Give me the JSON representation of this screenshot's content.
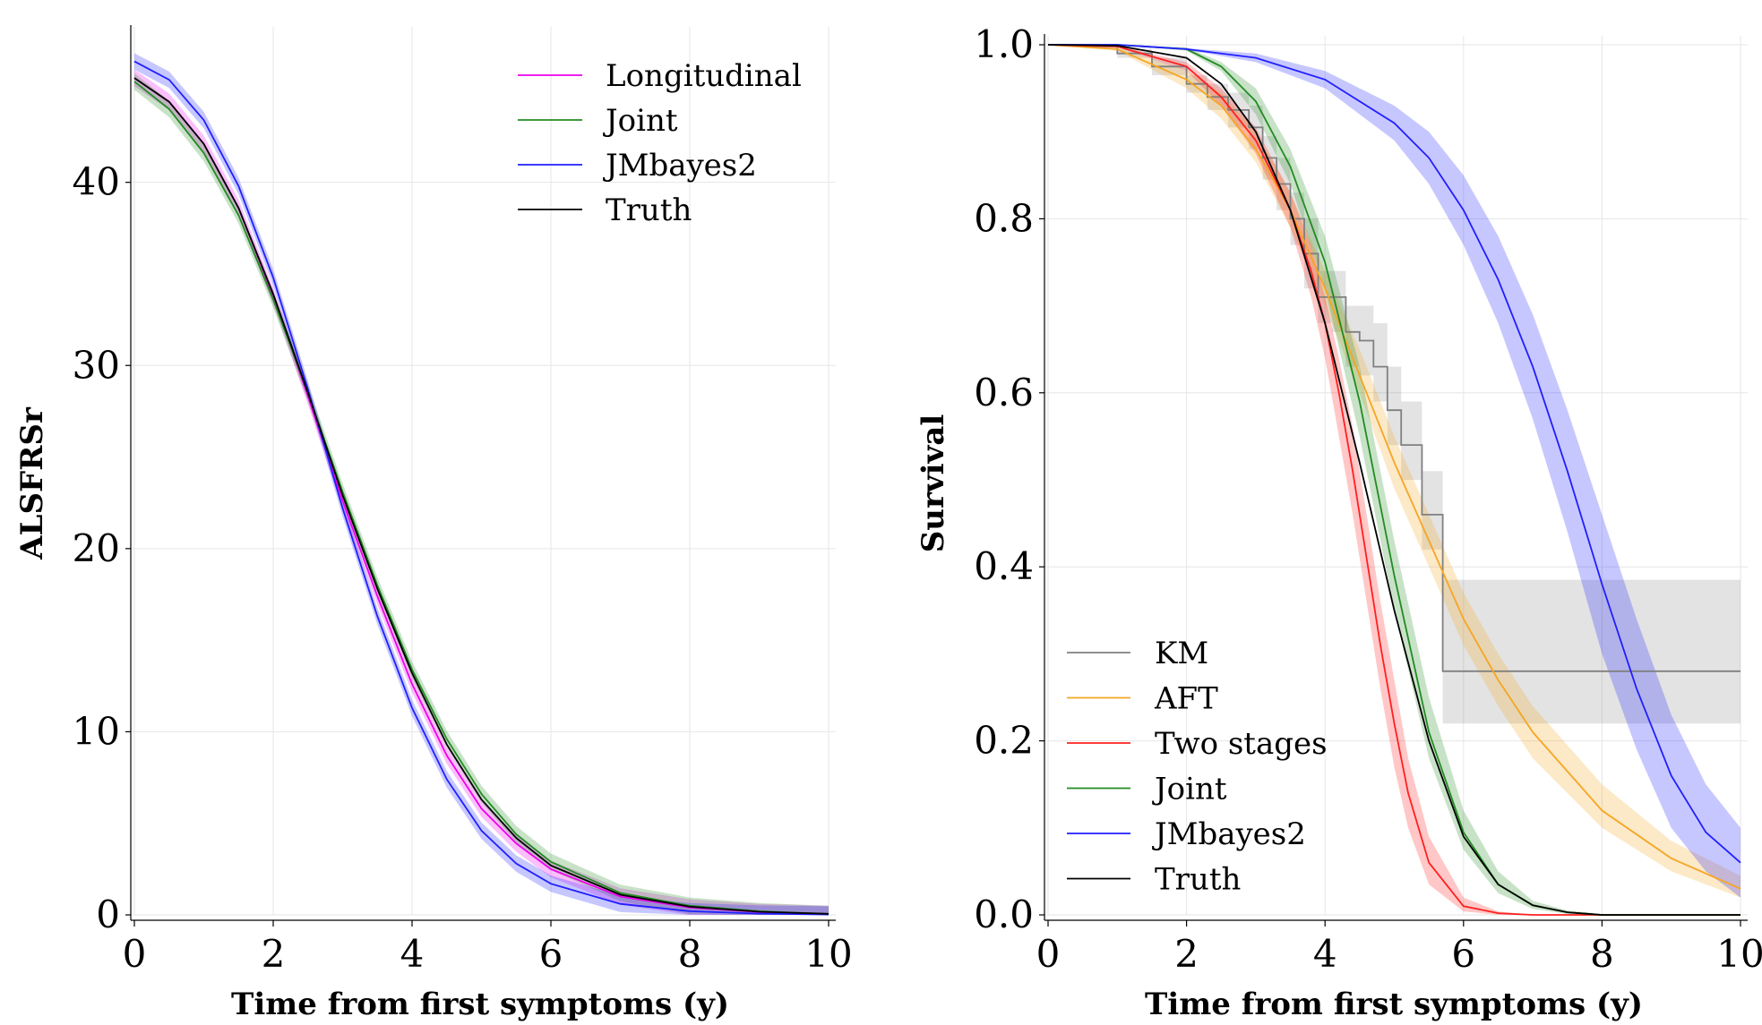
{
  "chart_data": [
    {
      "type": "line",
      "title": "",
      "xlabel": "Time from first symptoms (y)",
      "ylabel": "ALSFRSr",
      "xlim": [
        0,
        10
      ],
      "ylim": [
        0,
        48
      ],
      "xticks": [
        "0",
        "2",
        "4",
        "6",
        "8",
        "10"
      ],
      "yticks": [
        "0",
        "10",
        "20",
        "30",
        "40"
      ],
      "grid": true,
      "legend_position": "top-right",
      "series": [
        {
          "name": "Longitudinal",
          "color": "#ee00ee",
          "band": true,
          "x": [
            0,
            0.5,
            1,
            1.5,
            2,
            2.5,
            3,
            3.5,
            4,
            4.5,
            5,
            5.5,
            6,
            7,
            8,
            9,
            10
          ],
          "y": [
            45.7,
            44.4,
            42.1,
            38.6,
            33.8,
            28.3,
            22.6,
            17.4,
            12.6,
            8.7,
            5.8,
            3.9,
            2.5,
            1.0,
            0.4,
            0.15,
            0.05
          ]
        },
        {
          "name": "Joint",
          "color": "#228b22",
          "band": true,
          "x": [
            0,
            0.5,
            1,
            1.5,
            2,
            2.5,
            3,
            3.5,
            4,
            4.5,
            5,
            5.5,
            6,
            7,
            8,
            9,
            10
          ],
          "y": [
            45.5,
            44.0,
            41.6,
            38.2,
            33.6,
            28.5,
            23.1,
            18.0,
            13.4,
            9.6,
            6.6,
            4.4,
            2.9,
            1.2,
            0.5,
            0.2,
            0.05
          ]
        },
        {
          "name": "JMbayes2",
          "color": "#1f1fff",
          "band": true,
          "x": [
            0,
            0.5,
            1,
            1.5,
            2,
            2.5,
            3,
            3.5,
            4,
            4.5,
            5,
            5.5,
            6,
            7,
            8,
            9,
            10
          ],
          "y": [
            46.6,
            45.6,
            43.4,
            39.8,
            34.8,
            28.7,
            22.2,
            16.3,
            11.3,
            7.4,
            4.6,
            2.8,
            1.7,
            0.6,
            0.2,
            0.07,
            0.02
          ]
        },
        {
          "name": "Truth",
          "color": "#000000",
          "band": false,
          "x": [
            0,
            0.5,
            1,
            1.5,
            2,
            2.5,
            3,
            3.5,
            4,
            4.5,
            5,
            5.5,
            6,
            7,
            8,
            9,
            10
          ],
          "y": [
            45.7,
            44.4,
            42.1,
            38.6,
            33.9,
            28.5,
            22.9,
            17.8,
            13.2,
            9.3,
            6.3,
            4.2,
            2.7,
            1.1,
            0.45,
            0.17,
            0.06
          ]
        }
      ]
    },
    {
      "type": "line",
      "title": "",
      "xlabel": "Time from first symptoms (y)",
      "ylabel": "Survival",
      "xlim": [
        0,
        10
      ],
      "ylim": [
        0,
        1.0
      ],
      "xticks": [
        "0",
        "2",
        "4",
        "6",
        "8",
        "10"
      ],
      "yticks": [
        "0.0",
        "0.2",
        "0.4",
        "0.6",
        "0.8",
        "1.0"
      ],
      "grid": true,
      "legend_position": "bottom-left",
      "km": {
        "name": "KM",
        "color": "#808080",
        "x": [
          0,
          0.5,
          1,
          1.5,
          2,
          2.3,
          2.6,
          2.9,
          3.1,
          3.3,
          3.5,
          3.7,
          3.9,
          4.1,
          4.3,
          4.5,
          4.7,
          4.9,
          5.1,
          5.4,
          5.7,
          10
        ],
        "y": [
          1.0,
          0.998,
          0.99,
          0.975,
          0.955,
          0.94,
          0.925,
          0.905,
          0.87,
          0.84,
          0.8,
          0.76,
          0.71,
          0.71,
          0.67,
          0.66,
          0.63,
          0.58,
          0.54,
          0.46,
          0.28,
          0.28
        ],
        "lower": [
          1.0,
          0.996,
          0.985,
          0.965,
          0.945,
          0.925,
          0.905,
          0.88,
          0.845,
          0.81,
          0.77,
          0.72,
          0.68,
          0.67,
          0.63,
          0.62,
          0.59,
          0.54,
          0.5,
          0.42,
          0.22,
          0.22
        ],
        "upper": [
          1.0,
          1.0,
          0.995,
          0.985,
          0.965,
          0.955,
          0.945,
          0.93,
          0.895,
          0.87,
          0.83,
          0.8,
          0.74,
          0.74,
          0.7,
          0.7,
          0.68,
          0.63,
          0.59,
          0.51,
          0.385,
          0.385
        ]
      },
      "series": [
        {
          "name": "AFT",
          "color": "#f5a623",
          "x": [
            0,
            1,
            2,
            2.5,
            3,
            3.5,
            4,
            4.5,
            5,
            5.5,
            6,
            6.5,
            7,
            8,
            9,
            10
          ],
          "y": [
            1.0,
            0.995,
            0.96,
            0.93,
            0.88,
            0.81,
            0.72,
            0.62,
            0.52,
            0.43,
            0.34,
            0.27,
            0.21,
            0.12,
            0.065,
            0.03
          ],
          "lower": [
            1.0,
            0.993,
            0.95,
            0.915,
            0.865,
            0.79,
            0.7,
            0.6,
            0.49,
            0.4,
            0.31,
            0.24,
            0.18,
            0.1,
            0.05,
            0.02
          ],
          "upper": [
            1.0,
            0.997,
            0.97,
            0.945,
            0.9,
            0.83,
            0.74,
            0.65,
            0.55,
            0.46,
            0.37,
            0.3,
            0.24,
            0.15,
            0.085,
            0.045
          ]
        },
        {
          "name": "Two stages",
          "color": "#ff2020",
          "x": [
            0,
            1,
            2,
            2.5,
            3,
            3.5,
            3.8,
            4,
            4.2,
            4.4,
            4.6,
            4.8,
            5,
            5.2,
            5.5,
            6,
            6.5,
            7,
            10
          ],
          "y": [
            1.0,
            0.998,
            0.975,
            0.94,
            0.89,
            0.81,
            0.74,
            0.68,
            0.6,
            0.51,
            0.41,
            0.31,
            0.22,
            0.14,
            0.06,
            0.01,
            0.002,
            0.0,
            0.0
          ],
          "lower": [
            1.0,
            0.997,
            0.97,
            0.93,
            0.875,
            0.79,
            0.71,
            0.64,
            0.55,
            0.46,
            0.36,
            0.26,
            0.17,
            0.1,
            0.035,
            0.004,
            0.0,
            0.0,
            0.0
          ],
          "upper": [
            1.0,
            0.999,
            0.98,
            0.95,
            0.905,
            0.83,
            0.77,
            0.71,
            0.64,
            0.56,
            0.46,
            0.36,
            0.27,
            0.18,
            0.09,
            0.02,
            0.004,
            0.0,
            0.0
          ]
        },
        {
          "name": "Joint",
          "color": "#228b22",
          "x": [
            0,
            1,
            2,
            2.5,
            3,
            3.5,
            4,
            4.5,
            5,
            5.5,
            6,
            6.5,
            7,
            7.5,
            8,
            10
          ],
          "y": [
            1.0,
            1.0,
            0.995,
            0.975,
            0.935,
            0.86,
            0.75,
            0.59,
            0.39,
            0.21,
            0.095,
            0.035,
            0.011,
            0.003,
            0.0,
            0.0
          ],
          "lower": [
            1.0,
            1.0,
            0.993,
            0.97,
            0.92,
            0.84,
            0.72,
            0.55,
            0.35,
            0.18,
            0.075,
            0.025,
            0.007,
            0.001,
            0.0,
            0.0
          ],
          "upper": [
            1.0,
            1.0,
            0.997,
            0.98,
            0.95,
            0.88,
            0.78,
            0.63,
            0.43,
            0.25,
            0.12,
            0.05,
            0.016,
            0.005,
            0.001,
            0.0
          ]
        },
        {
          "name": "JMbayes2",
          "color": "#1f1fff",
          "x": [
            0,
            1,
            2,
            3,
            4,
            5,
            5.5,
            6,
            6.5,
            7,
            7.5,
            8,
            8.5,
            9,
            9.5,
            10
          ],
          "y": [
            1.0,
            1.0,
            0.995,
            0.985,
            0.96,
            0.91,
            0.87,
            0.81,
            0.73,
            0.63,
            0.51,
            0.38,
            0.26,
            0.16,
            0.095,
            0.06
          ],
          "lower": [
            1.0,
            1.0,
            0.994,
            0.98,
            0.95,
            0.89,
            0.84,
            0.77,
            0.68,
            0.57,
            0.44,
            0.3,
            0.19,
            0.1,
            0.05,
            0.02
          ],
          "upper": [
            1.0,
            1.0,
            0.996,
            0.99,
            0.97,
            0.93,
            0.9,
            0.85,
            0.78,
            0.69,
            0.58,
            0.46,
            0.34,
            0.23,
            0.15,
            0.1
          ]
        },
        {
          "name": "Truth",
          "color": "#000000",
          "x": [
            0,
            1,
            2,
            2.5,
            3,
            3.5,
            4,
            4.5,
            5,
            5.5,
            6,
            6.5,
            7,
            7.5,
            8,
            10
          ],
          "y": [
            1.0,
            0.999,
            0.985,
            0.955,
            0.9,
            0.81,
            0.68,
            0.52,
            0.35,
            0.2,
            0.09,
            0.035,
            0.011,
            0.003,
            0.0,
            0.0
          ]
        }
      ]
    }
  ]
}
